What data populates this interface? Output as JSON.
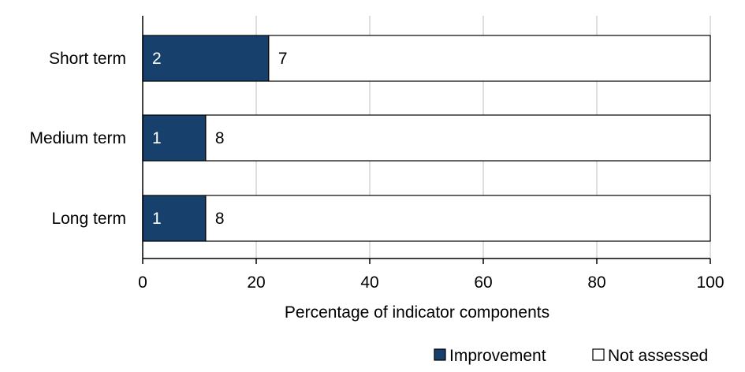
{
  "chart_data": {
    "type": "bar",
    "orientation": "horizontal",
    "stacked": true,
    "categories": [
      "Short term",
      "Medium term",
      "Long term"
    ],
    "series": [
      {
        "name": "Improvement",
        "counts": [
          2,
          1,
          1
        ],
        "values": [
          22.2,
          11.1,
          11.1
        ],
        "color": "#17406d"
      },
      {
        "name": "Not assessed",
        "counts": [
          7,
          8,
          8
        ],
        "values": [
          77.8,
          88.9,
          88.9
        ],
        "color": "#ffffff"
      }
    ],
    "xlabel": "Percentage of indicator components",
    "ylabel": "",
    "xlim": [
      0,
      100
    ],
    "xticks": [
      0,
      20,
      40,
      60,
      80,
      100
    ],
    "grid": "vertical",
    "legend_position": "bottom-right"
  }
}
